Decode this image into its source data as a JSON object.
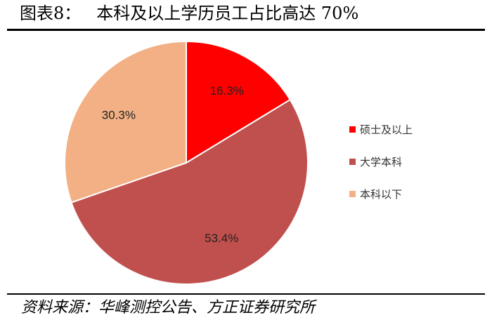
{
  "title": {
    "prefix": "图表8：",
    "text": "本科及以上学历员工占比高达 70%"
  },
  "source": "资料来源：华峰测控公告、方正证券研究所",
  "chart_data": {
    "type": "pie",
    "categories": [
      "硕士及以上",
      "大学本科",
      "本科以下"
    ],
    "values": [
      16.3,
      53.4,
      30.3
    ],
    "labels": [
      "16.3%",
      "53.4%",
      "30.3%"
    ],
    "colors": [
      "#FF0000",
      "#C0504D",
      "#F2B084"
    ],
    "start_angle_deg": 0,
    "direction": "clockwise",
    "legend_position": "right"
  }
}
